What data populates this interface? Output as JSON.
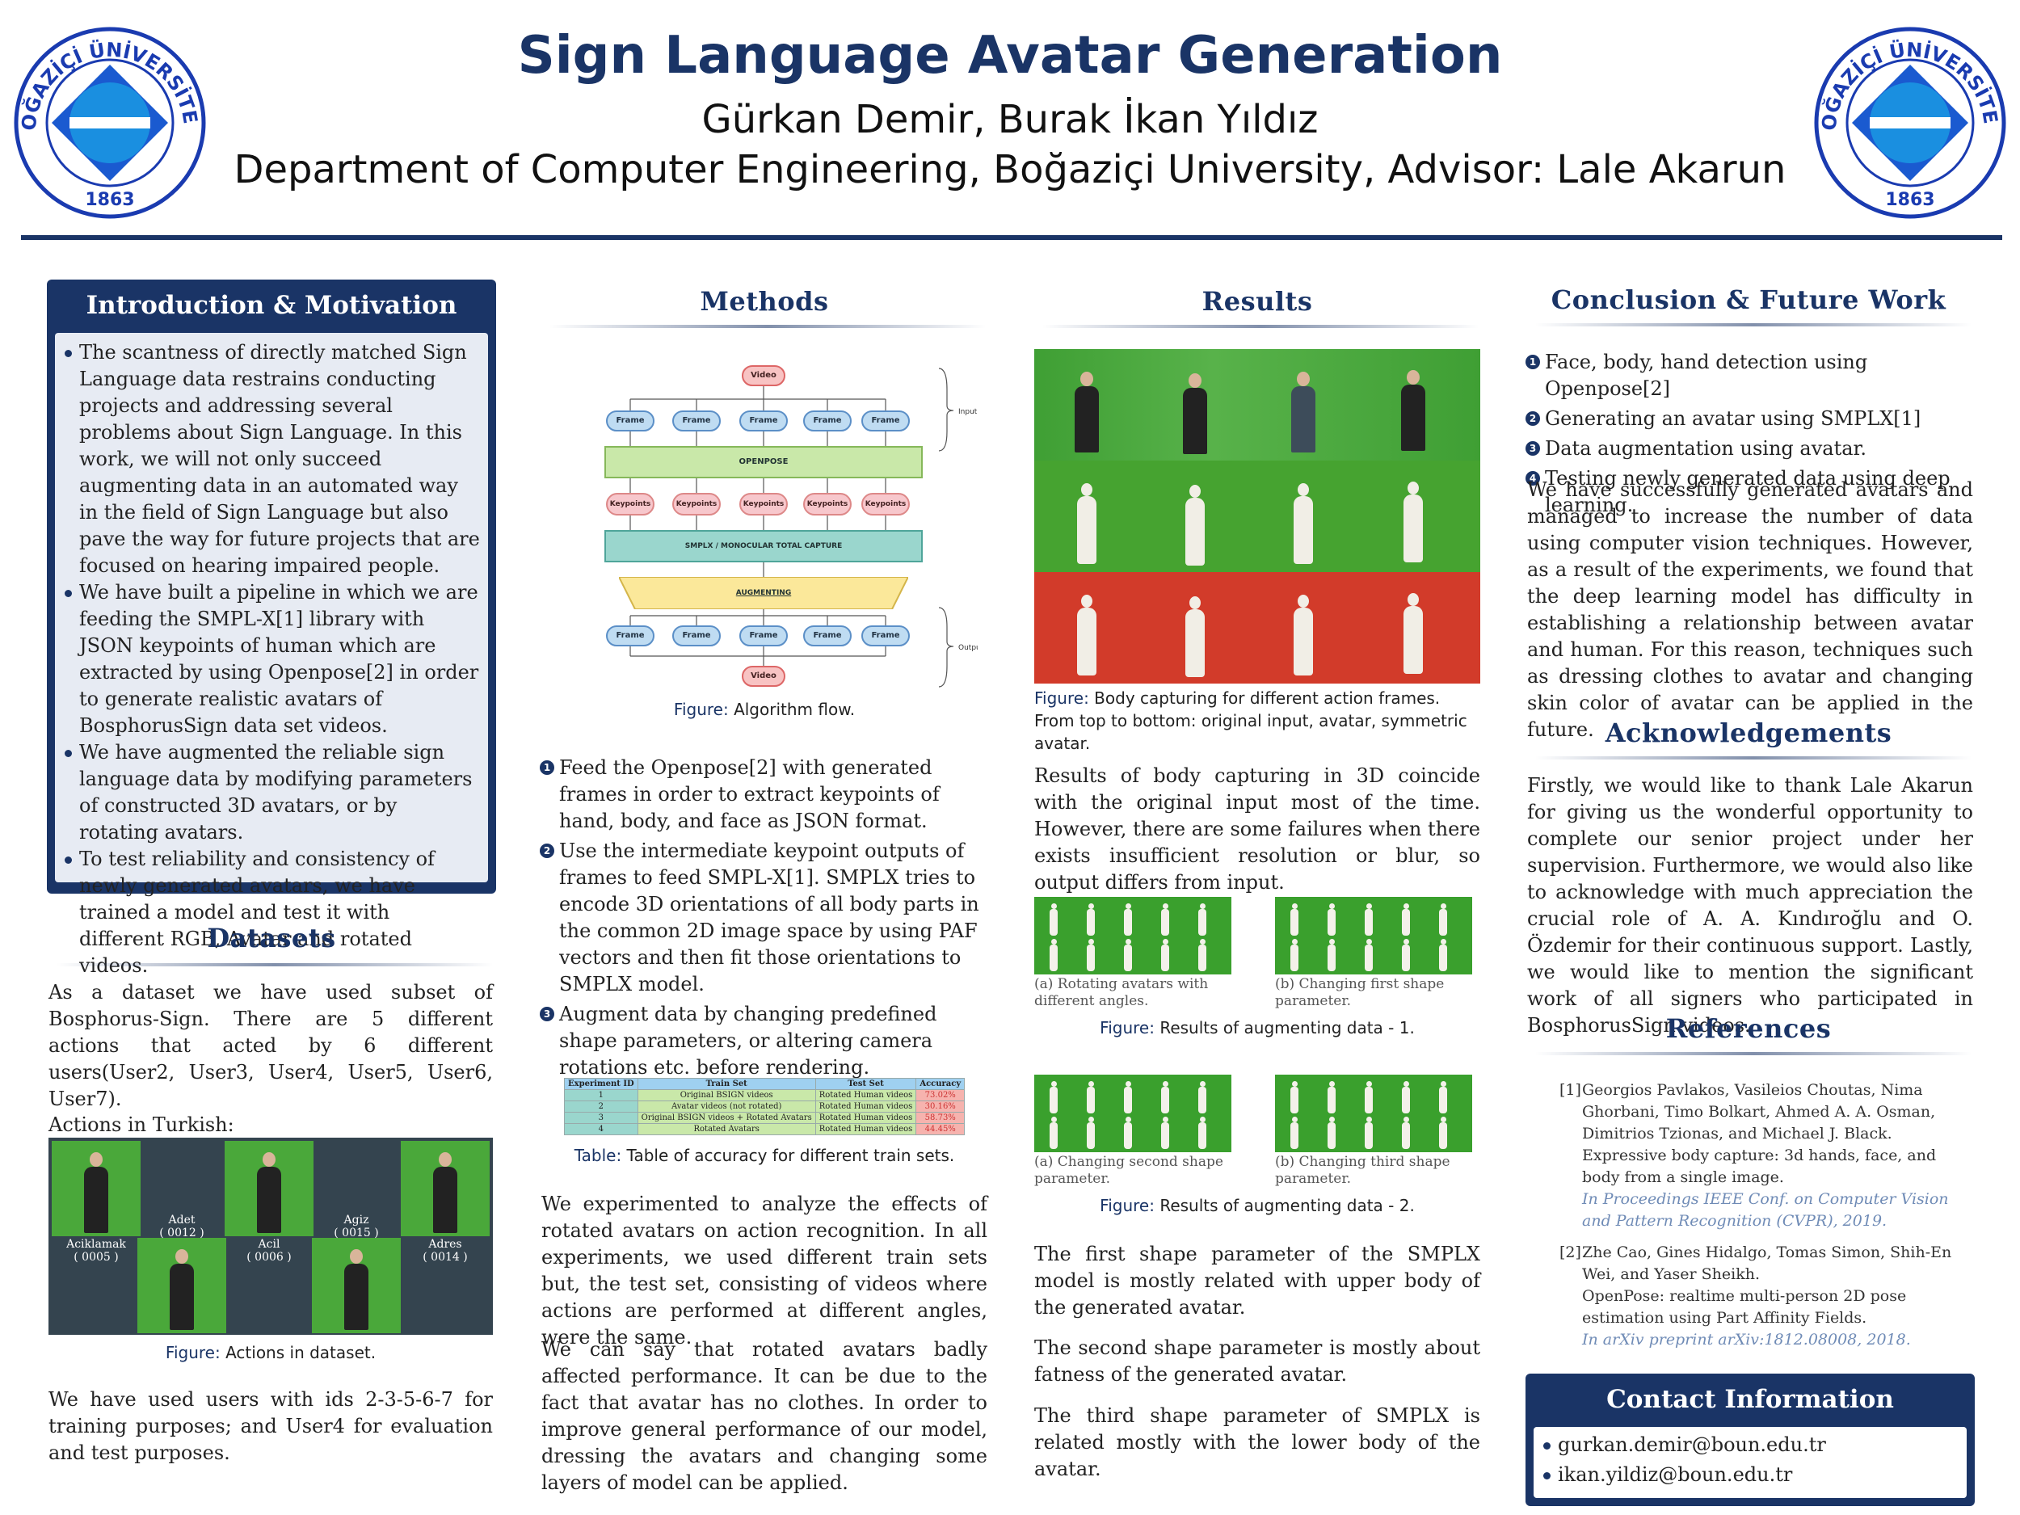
{
  "header": {
    "title": "Sign Language Avatar Generation",
    "authors": "Gürkan Demir, Burak İkan Yıldız",
    "department": "Department of Computer Engineering, Boğaziçi University, Advisor: Lale Akarun",
    "logo_text": "BOĞAZİÇİ ÜNİVERSİTESİ",
    "logo_year": "1863"
  },
  "intro": {
    "heading": "Introduction & Motivation",
    "bullets": [
      "The scantness of directly matched Sign Language data restrains conducting projects and addressing several problems about Sign Language. In this work, we will not only succeed augmenting data in an automated way in the field of Sign Language but also pave the way for future projects that are focused on hearing impaired people.",
      "We have built a pipeline in which we are feeding the SMPL-X[1] library with JSON keypoints of human which are extracted by using Openpose[2] in order to generate realistic avatars of BosphorusSign data set videos.",
      "We have augmented the reliable sign language data by modifying parameters of constructed 3D avatars, or by rotating avatars.",
      "To test reliability and consistency of newly generated avatars, we have trained a model and test it with different RGB, Avatar and rotated videos."
    ]
  },
  "datasets": {
    "heading": "Datasets",
    "para1": "As a dataset we have used subset of Bosphorus-Sign. There are 5 different actions that acted by 6 different users(User2, User3, User4, User5, User6, User7).",
    "actions_label": "Actions in Turkish:",
    "actions": [
      {
        "name": "Aciklamak",
        "id": "( 0005 )"
      },
      {
        "name": "Adet",
        "id": "( 0012 )"
      },
      {
        "name": "Acil",
        "id": "( 0006 )"
      },
      {
        "name": "Agiz",
        "id": "( 0015 )"
      },
      {
        "name": "Adres",
        "id": "( 0014 )"
      }
    ],
    "fig_label": "Figure:",
    "fig_caption": "Actions in dataset.",
    "para2": "We have used users with ids 2-3-5-6-7 for training purposes; and User4 for evaluation and test purposes."
  },
  "methods": {
    "heading": "Methods",
    "flow": {
      "video": "Video",
      "frame": "Frame",
      "openpose": "OPENPOSE",
      "keypoints": "Keypoints",
      "smplx": "SMPLX / MONOCULAR TOTAL CAPTURE",
      "augmenting": "AUGMENTING",
      "input": "Input",
      "output": "Output"
    },
    "fig_label": "Figure:",
    "fig_caption": "Algorithm flow.",
    "steps": [
      "Feed the Openpose[2] with generated frames in order to extract keypoints of hand, body, and face as JSON format.",
      "Use the intermediate keypoint outputs of frames to feed SMPL-X[1]. SMPLX tries to encode 3D orientations of all body parts in the common 2D image space by using PAF vectors and then fit those orientations to SMPLX model.",
      "Augment data by changing predefined shape parameters, or altering camera rotations etc. before rendering."
    ],
    "table": {
      "headers": [
        "Experiment ID",
        "Train Set",
        "Test Set",
        "Accuracy"
      ],
      "rows": [
        [
          "1",
          "Original BSIGN videos",
          "Rotated Human videos",
          "73.02%"
        ],
        [
          "2",
          "Avatar videos (not rotated)",
          "Rotated Human videos",
          "30.16%"
        ],
        [
          "3",
          "Original BSIGN videos + Rotated Avatars",
          "Rotated Human videos",
          "58.73%"
        ],
        [
          "4",
          "Rotated Avatars",
          "Rotated Human videos",
          "44.45%"
        ]
      ]
    },
    "table_label": "Table:",
    "table_caption": "Table of accuracy for different train sets.",
    "para1": "We experimented to analyze the effects of rotated avatars on action recognition. In all experiments, we used different train sets but, the test set, consisting of videos where actions are performed at different angles, were the same.",
    "para2": "We can say that rotated avatars badly affected performance. It can be due to the fact that avatar has no clothes. In order to improve general performance of our model, dressing the avatars and changing some layers of model can be applied."
  },
  "results": {
    "heading": "Results",
    "fig1_label": "Figure:",
    "fig1_caption": "Body capturing for different action frames. From top to bottom: original input, avatar, symmetric avatar.",
    "para1": "Results of body capturing in 3D coincide with the original input most of the time. However, there are some failures when there exists insufficient resolution or blur, so output differs from input.",
    "sub_a": "(a) Rotating avatars with different angles.",
    "sub_b": "(b) Changing first shape parameter.",
    "fig2_label": "Figure:",
    "fig2_caption": "Results of augmenting data - 1.",
    "sub_c": "(a) Changing second shape parameter.",
    "sub_d": "(b) Changing third shape parameter.",
    "fig3_label": "Figure:",
    "fig3_caption": "Results of augmenting data - 2.",
    "para2": "The first shape parameter of the SMPLX model is mostly related with upper body of the generated avatar.",
    "para3": "The second shape parameter is mostly about fatness of the generated avatar.",
    "para4": "The third shape parameter of SMPLX is related mostly with the lower body of the avatar."
  },
  "conclusion": {
    "heading": "Conclusion & Future Work",
    "items": [
      "Face, body, hand detection using Openpose[2]",
      "Generating an avatar using SMPLX[1]",
      "Data augmentation using avatar.",
      "Testing newly generated data using deep learning."
    ],
    "para": "We have successfully generated avatars and managed to increase the number of data using computer vision techniques. However, as a result of the experiments, we found that the deep learning model has difficulty in establishing a relationship between avatar and human. For this reason, techniques such as dressing clothes to avatar and changing skin color of avatar can be applied in the future."
  },
  "acknowledgements": {
    "heading": "Acknowledgements",
    "para": "Firstly, we would like to thank Lale Akarun for giving us the wonderful opportunity to complete our senior project under her supervision. Furthermore, we would also like to acknowledge with much appreciation the crucial role of A. A. Kındıroğlu and O. Özdemir for their continuous support. Lastly, we would like to mention the significant work of all signers who participated in BosphorusSign videos."
  },
  "references": {
    "heading": "References",
    "items": [
      {
        "num": "[1]",
        "authors": "Georgios Pavlakos, Vasileios Choutas, Nima Ghorbani, Timo Bolkart, Ahmed A. A. Osman, Dimitrios Tzionas, and Michael J. Black.",
        "title": "Expressive body capture: 3d hands, face, and body from a single image.",
        "venue": "In Proceedings IEEE Conf. on Computer Vision and Pattern Recognition (CVPR), 2019."
      },
      {
        "num": "[2]",
        "authors": "Zhe Cao, Gines Hidalgo, Tomas Simon, Shih-En Wei, and Yaser Sheikh.",
        "title": "OpenPose: realtime multi-person 2D pose estimation using Part Affinity Fields.",
        "venue": "In arXiv preprint arXiv:1812.08008, 2018."
      }
    ]
  },
  "contact": {
    "heading": "Contact Information",
    "emails": [
      "gurkan.demir@boun.edu.tr",
      "ikan.yildiz@boun.edu.tr"
    ]
  },
  "colors": {
    "navy": "#1a3466",
    "green": "#46a335",
    "red": "#d23b2a"
  }
}
